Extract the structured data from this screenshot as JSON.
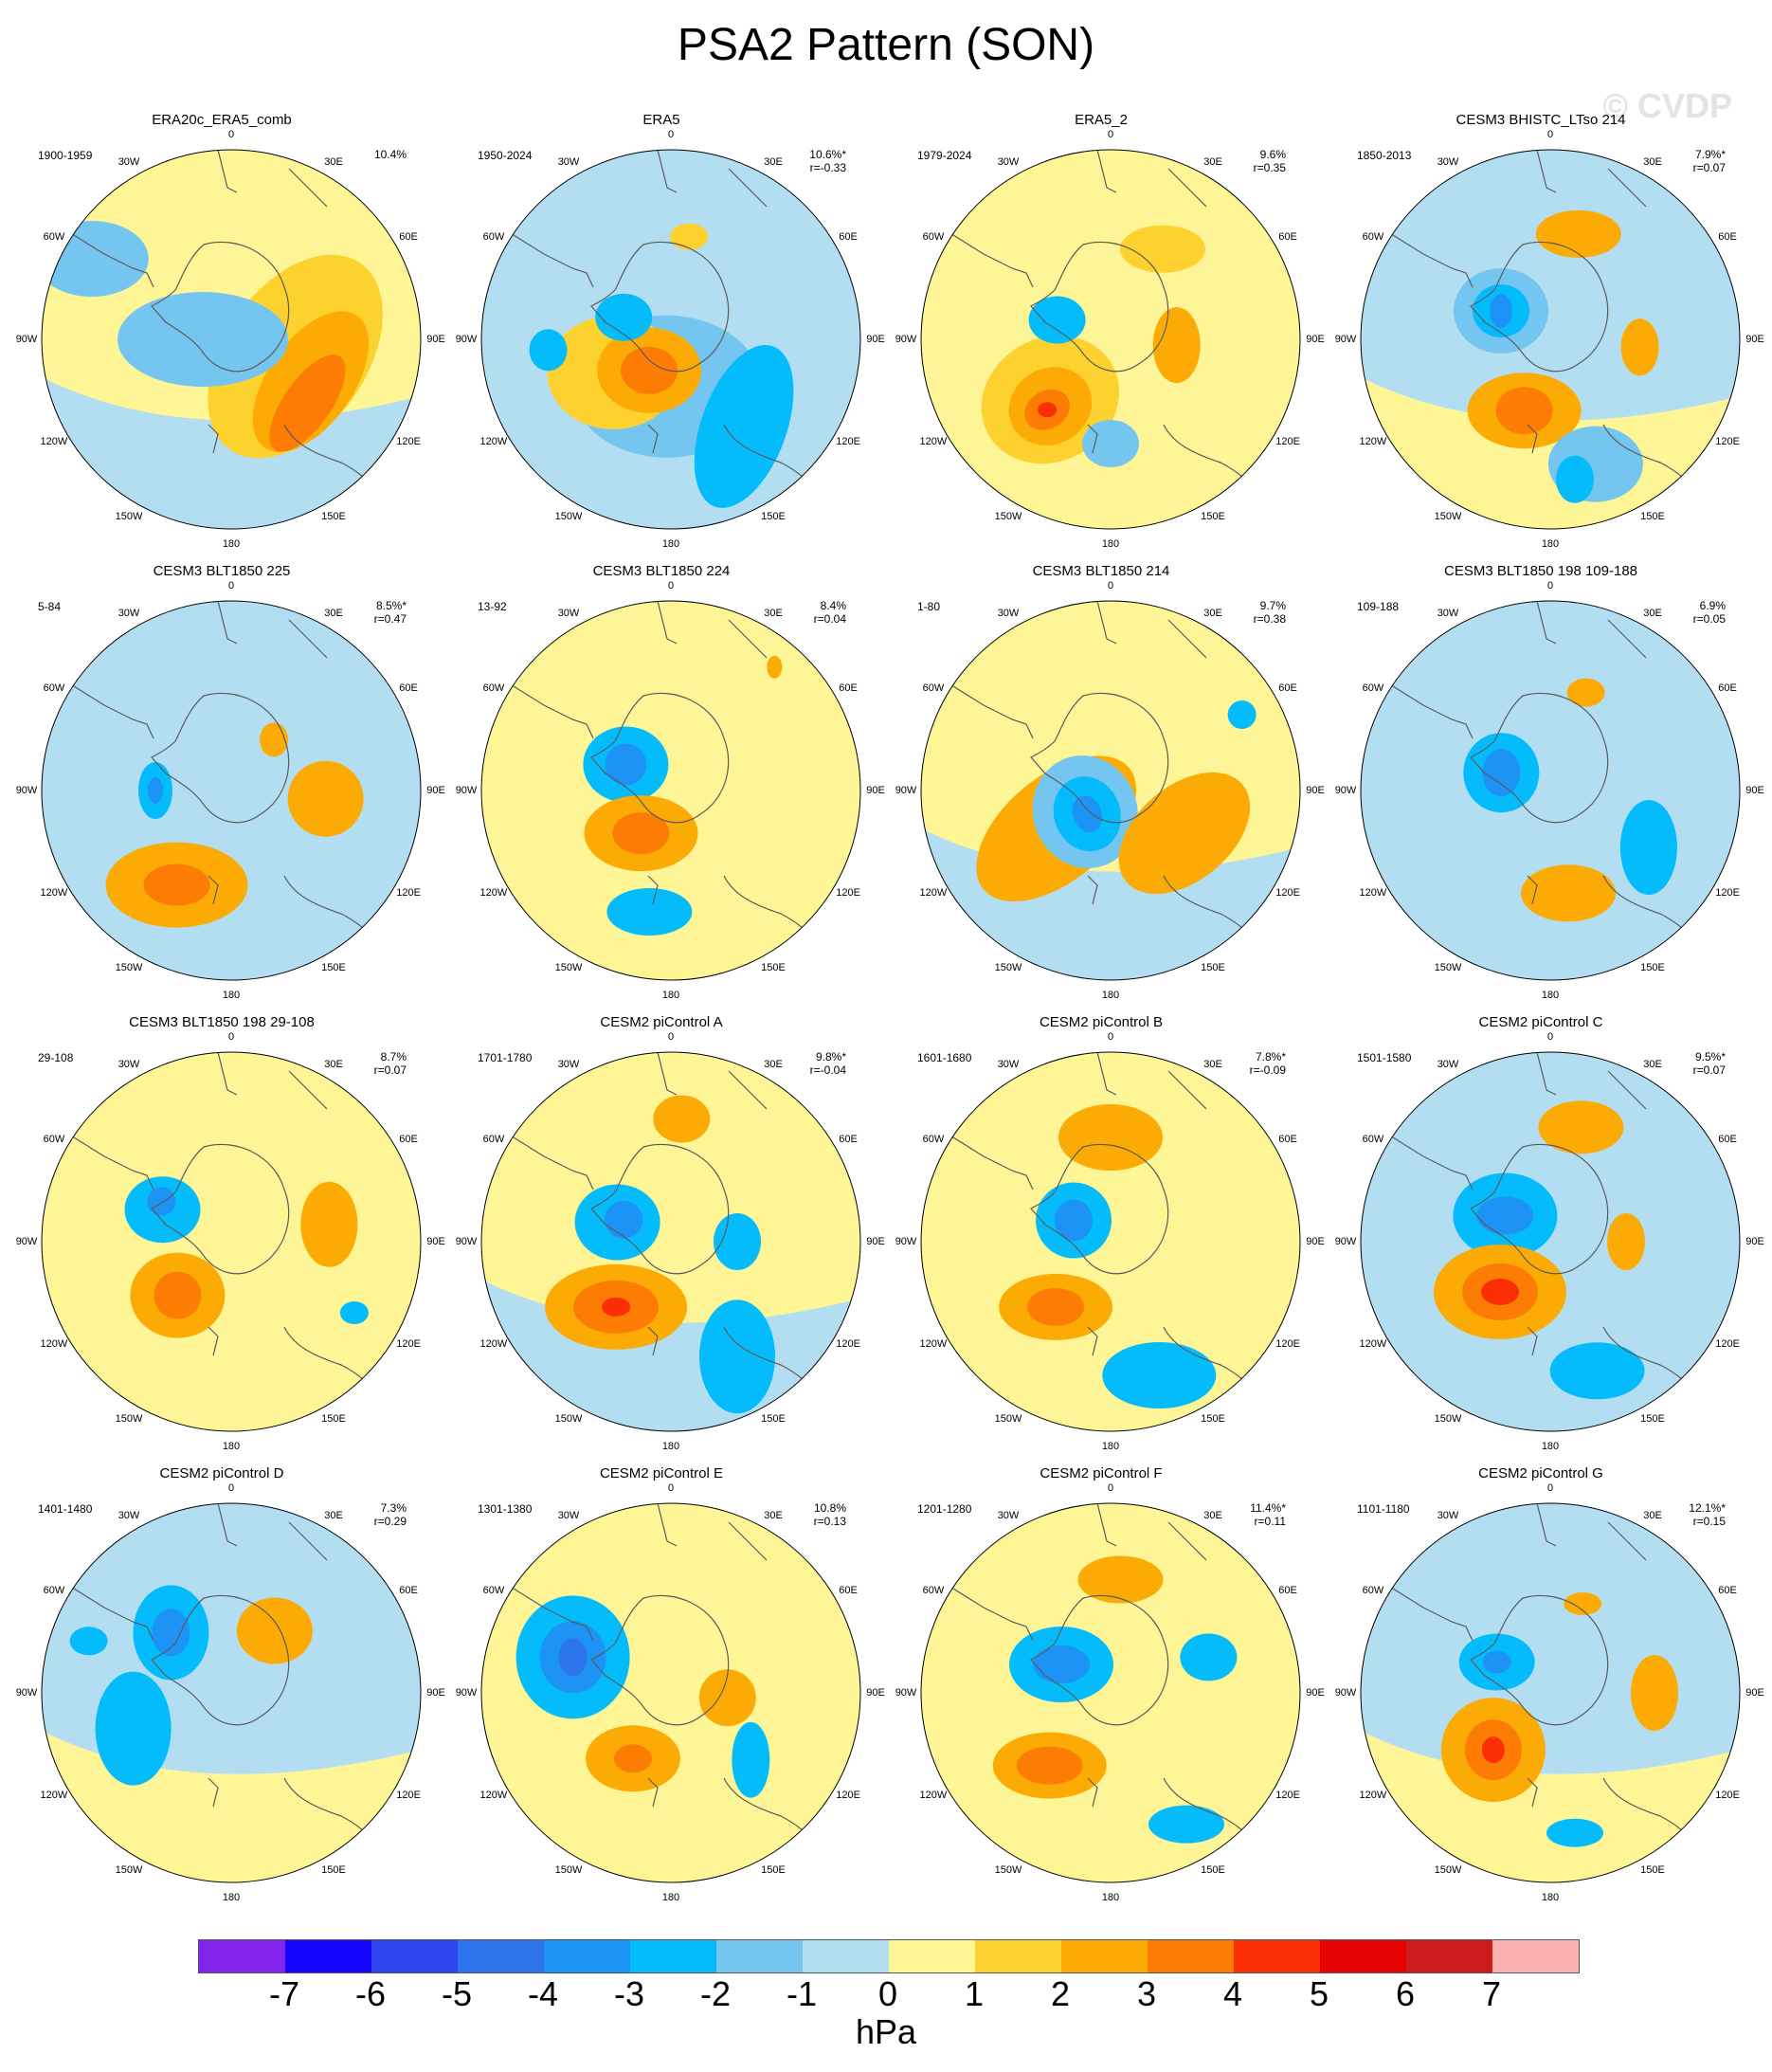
{
  "title": "PSA2 Pattern (SON)",
  "watermark": "© CVDP",
  "lon_labels": [
    "0",
    "30E",
    "60E",
    "90E",
    "120E",
    "150E",
    "180",
    "150W",
    "120W",
    "90W",
    "60W",
    "30W"
  ],
  "colors": {
    "positive": [
      "#fdf596",
      "#fdd12e",
      "#fcab04",
      "#fc7c04",
      "#fc2e04",
      "#e80404",
      "#cc1c1c",
      "#fcb2b2"
    ],
    "negative": [
      "#b3def2",
      "#74c6f0",
      "#04bcfc",
      "#1c93f5",
      "#2e74ec",
      "#2b44ec",
      "#1404fc",
      "#8224ec"
    ],
    "coast": "#5a5a5a"
  },
  "panels": [
    {
      "title": "ERA20c_ERA5_comb",
      "period": "1900-1959",
      "pct": "10.4%",
      "r": ""
    },
    {
      "title": "ERA5",
      "period": "1950-2024",
      "pct": "10.6%*",
      "r": "r=-0.33"
    },
    {
      "title": "ERA5_2",
      "period": "1979-2024",
      "pct": "9.6%",
      "r": "r=0.35"
    },
    {
      "title": "CESM3 BHISTC_LTso 214",
      "period": "1850-2013",
      "pct": "7.9%*",
      "r": "r=0.07"
    },
    {
      "title": "CESM3 BLT1850 225",
      "period": "5-84",
      "pct": "8.5%*",
      "r": "r=0.47"
    },
    {
      "title": "CESM3 BLT1850 224",
      "period": "13-92",
      "pct": "8.4%",
      "r": "r=0.04"
    },
    {
      "title": "CESM3 BLT1850 214",
      "period": "1-80",
      "pct": "9.7%",
      "r": "r=0.38"
    },
    {
      "title": "CESM3 BLT1850 198 109-188",
      "period": "109-188",
      "pct": "6.9%",
      "r": "r=0.05"
    },
    {
      "title": "CESM3 BLT1850 198 29-108",
      "period": "29-108",
      "pct": "8.7%",
      "r": "r=0.07"
    },
    {
      "title": "CESM2 piControl A",
      "period": "1701-1780",
      "pct": "9.8%*",
      "r": "r=-0.04"
    },
    {
      "title": "CESM2 piControl B",
      "period": "1601-1680",
      "pct": "7.8%*",
      "r": "r=-0.09"
    },
    {
      "title": "CESM2 piControl C",
      "period": "1501-1580",
      "pct": "9.5%*",
      "r": "r=0.07"
    },
    {
      "title": "CESM2 piControl D",
      "period": "1401-1480",
      "pct": "7.3%",
      "r": "r=0.29"
    },
    {
      "title": "CESM2 piControl E",
      "period": "1301-1380",
      "pct": "10.8%",
      "r": "r=0.13"
    },
    {
      "title": "CESM2 piControl F",
      "period": "1201-1280",
      "pct": "11.4%*",
      "r": "r=0.11"
    },
    {
      "title": "CESM2 piControl G",
      "period": "1101-1180",
      "pct": "12.1%*",
      "r": "r=0.15"
    }
  ],
  "colorbar": {
    "ticks": [
      "-7",
      "-6",
      "-5",
      "-4",
      "-3",
      "-2",
      "-1",
      "0",
      "1",
      "2",
      "3",
      "4",
      "5",
      "6",
      "7"
    ],
    "units": "hPa",
    "colors": [
      "#8224ec",
      "#1404fc",
      "#2b44ec",
      "#2e74ec",
      "#1c93f5",
      "#04bcfc",
      "#74c6f0",
      "#b3def2",
      "#fdf596",
      "#fdd12e",
      "#fcab04",
      "#fc7c04",
      "#fc2e04",
      "#e80404",
      "#cc1c1c",
      "#fcb2b2"
    ]
  }
}
